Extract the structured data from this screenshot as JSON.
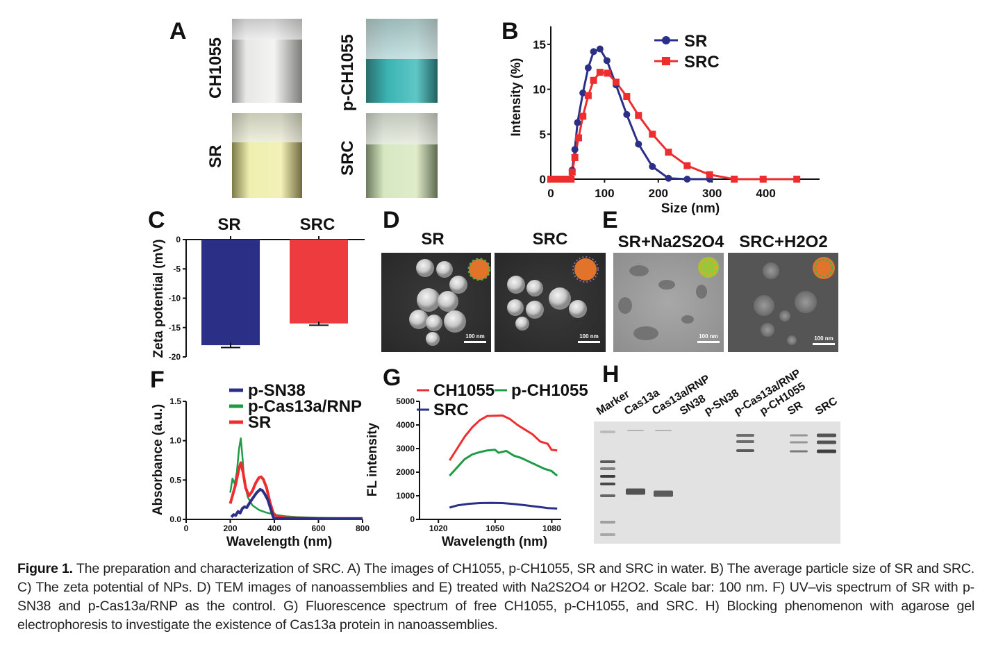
{
  "panels": {
    "a": {
      "label": "A",
      "vials": [
        "CH1055",
        "p-CH1055",
        "SR",
        "SRC"
      ]
    },
    "b": {
      "label": "B"
    },
    "c": {
      "label": "C"
    },
    "d": {
      "label": "D",
      "titles": [
        "SR",
        "SRC"
      ],
      "scale_bar": "100 nm"
    },
    "e": {
      "label": "E",
      "titles": [
        "SR+Na2S2O4",
        "SRC+H2O2"
      ],
      "scale_bar": "100 nm"
    },
    "f": {
      "label": "F"
    },
    "g": {
      "label": "G"
    },
    "h": {
      "label": "H",
      "lanes": [
        "Marker",
        "Cas13a",
        "Cas13a/RNP",
        "SN38",
        "p-SN38",
        "p-Cas13a/RNP",
        "p-CH1055",
        "SR",
        "SRC"
      ]
    }
  },
  "colors": {
    "blue": "#2b2f86",
    "red": "#ee2d2f",
    "green": "#1f9a47"
  },
  "chart_data": [
    {
      "id": "B",
      "type": "line",
      "xlabel": "Size (nm)",
      "ylabel": "Intensity (%)",
      "xlim": [
        0,
        500
      ],
      "ylim": [
        0,
        17
      ],
      "xticks": [
        0,
        100,
        200,
        300,
        400
      ],
      "yticks": [
        0,
        5,
        10,
        15
      ],
      "legend": "top-right",
      "series": [
        {
          "name": "SR",
          "color": "#2b2f86",
          "marker": "circle",
          "x": [
            0,
            10,
            20,
            30,
            36,
            40,
            45,
            50,
            60,
            70,
            80,
            92,
            105,
            122,
            142,
            164,
            190,
            220,
            255,
            297
          ],
          "y": [
            0,
            0,
            0,
            0,
            0,
            1.0,
            3.3,
            6.3,
            9.6,
            12.4,
            14.2,
            14.5,
            13.2,
            10.5,
            7.2,
            3.9,
            1.4,
            0.1,
            0,
            0
          ]
        },
        {
          "name": "SRC",
          "color": "#ee2d2f",
          "marker": "square",
          "x": [
            0,
            10,
            20,
            30,
            38,
            40,
            45,
            52,
            60,
            70,
            80,
            92,
            106,
            122,
            142,
            164,
            190,
            220,
            255,
            297,
            343,
            397,
            460
          ],
          "y": [
            0,
            0,
            0,
            0,
            0,
            0.8,
            2.4,
            4.6,
            7.0,
            9.3,
            11.0,
            11.9,
            11.8,
            10.8,
            9.2,
            7.1,
            5.0,
            3.0,
            1.5,
            0.5,
            0,
            0,
            0
          ]
        }
      ]
    },
    {
      "id": "C",
      "type": "bar",
      "ylabel": "Zeta potential (mV)",
      "categories": [
        "SR",
        "SRC"
      ],
      "values": [
        -18.0,
        -14.3
      ],
      "errors": [
        0.4,
        0.3
      ],
      "colors": [
        "#2b2f86",
        "#ee3b3d"
      ],
      "ylim": [
        -20,
        0
      ],
      "yticks": [
        0,
        -5,
        -10,
        -15,
        -20
      ]
    },
    {
      "id": "F",
      "type": "line",
      "xlabel": "Wavelength (nm)",
      "ylabel": "Absorbance (a.u.)",
      "xlim": [
        0,
        800
      ],
      "ylim": [
        0,
        1.5
      ],
      "xticks": [
        0,
        200,
        400,
        600,
        800
      ],
      "yticks": [
        "0.0",
        "0.5",
        "1.0",
        "1.5"
      ],
      "legend": "top-left",
      "series": [
        {
          "name": "p-SN38",
          "color": "#2b2f86",
          "x": [
            205,
            215,
            225,
            235,
            245,
            255,
            265,
            275,
            290,
            305,
            320,
            335,
            345,
            355,
            370,
            385,
            395,
            400,
            450,
            600,
            800
          ],
          "y": [
            0.03,
            0.06,
            0.05,
            0.1,
            0.08,
            0.14,
            0.16,
            0.15,
            0.22,
            0.28,
            0.34,
            0.38,
            0.37,
            0.33,
            0.25,
            0.12,
            0.03,
            0.01,
            0.01,
            0.01,
            0.01
          ]
        },
        {
          "name": "p-Cas13a/RNP",
          "color": "#1f9a47",
          "x": [
            200,
            210,
            220,
            230,
            240,
            248,
            255,
            265,
            280,
            300,
            330,
            360,
            400,
            450,
            500,
            600,
            800
          ],
          "y": [
            0.34,
            0.52,
            0.45,
            0.6,
            0.9,
            1.03,
            0.8,
            0.45,
            0.28,
            0.18,
            0.12,
            0.09,
            0.06,
            0.04,
            0.03,
            0.02,
            0.01
          ]
        },
        {
          "name": "SR",
          "color": "#ee2d2f",
          "x": [
            200,
            210,
            225,
            240,
            248,
            258,
            270,
            285,
            300,
            315,
            330,
            340,
            350,
            365,
            380,
            395,
            410,
            450,
            600,
            800
          ],
          "y": [
            0.2,
            0.3,
            0.45,
            0.65,
            0.72,
            0.6,
            0.4,
            0.3,
            0.36,
            0.46,
            0.53,
            0.54,
            0.51,
            0.4,
            0.22,
            0.08,
            0.04,
            0.02,
            0.01,
            0.01
          ]
        }
      ]
    },
    {
      "id": "G",
      "type": "line",
      "xlabel": "Wavelength (nm)",
      "ylabel": "FL intensity",
      "xlim": [
        1010,
        1085
      ],
      "ylim": [
        0,
        5000
      ],
      "xticks": [
        1020,
        1050,
        1080
      ],
      "yticks": [
        0,
        1000,
        2000,
        3000,
        4000,
        5000
      ],
      "legend": "top",
      "series": [
        {
          "name": "CH1055",
          "color": "#ee2d2f",
          "x": [
            1026,
            1030,
            1034,
            1038,
            1042,
            1046,
            1050,
            1054,
            1058,
            1062,
            1066,
            1070,
            1074,
            1078,
            1080,
            1083
          ],
          "y": [
            2500,
            3000,
            3500,
            3900,
            4200,
            4380,
            4390,
            4400,
            4250,
            4000,
            3800,
            3600,
            3300,
            3200,
            2950,
            2920
          ]
        },
        {
          "name": "p-CH1055",
          "color": "#1f9a47",
          "x": [
            1026,
            1030,
            1034,
            1038,
            1042,
            1046,
            1050,
            1052,
            1056,
            1060,
            1064,
            1068,
            1072,
            1076,
            1080,
            1083
          ],
          "y": [
            1850,
            2200,
            2550,
            2750,
            2850,
            2920,
            2950,
            2820,
            2900,
            2700,
            2600,
            2450,
            2300,
            2150,
            2050,
            1850
          ]
        },
        {
          "name": "SRC",
          "color": "#2b2f86",
          "x": [
            1026,
            1030,
            1036,
            1042,
            1048,
            1054,
            1060,
            1066,
            1070,
            1074,
            1078,
            1083
          ],
          "y": [
            500,
            590,
            660,
            690,
            700,
            690,
            650,
            600,
            560,
            520,
            480,
            460
          ]
        }
      ]
    }
  ],
  "caption": {
    "label": "Figure 1.",
    "text": "The preparation and characterization of SRC. A) The images of CH1055, p-CH1055, SR and SRC in water. B) The average particle size of SR and SRC. C) The zeta potential of NPs. D) TEM images of nanoassemblies and E) treated with Na2S2O4 or H2O2. Scale bar: 100 nm. F) UV–vis spectrum of SR with p-SN38 and p-Cas13a/RNP as the control. G) Fluorescence spectrum of free CH1055, p-CH1055, and SRC. H) Blocking phenomenon with agarose gel electrophoresis to investigate the existence of Cas13a protein in nanoassemblies."
  }
}
